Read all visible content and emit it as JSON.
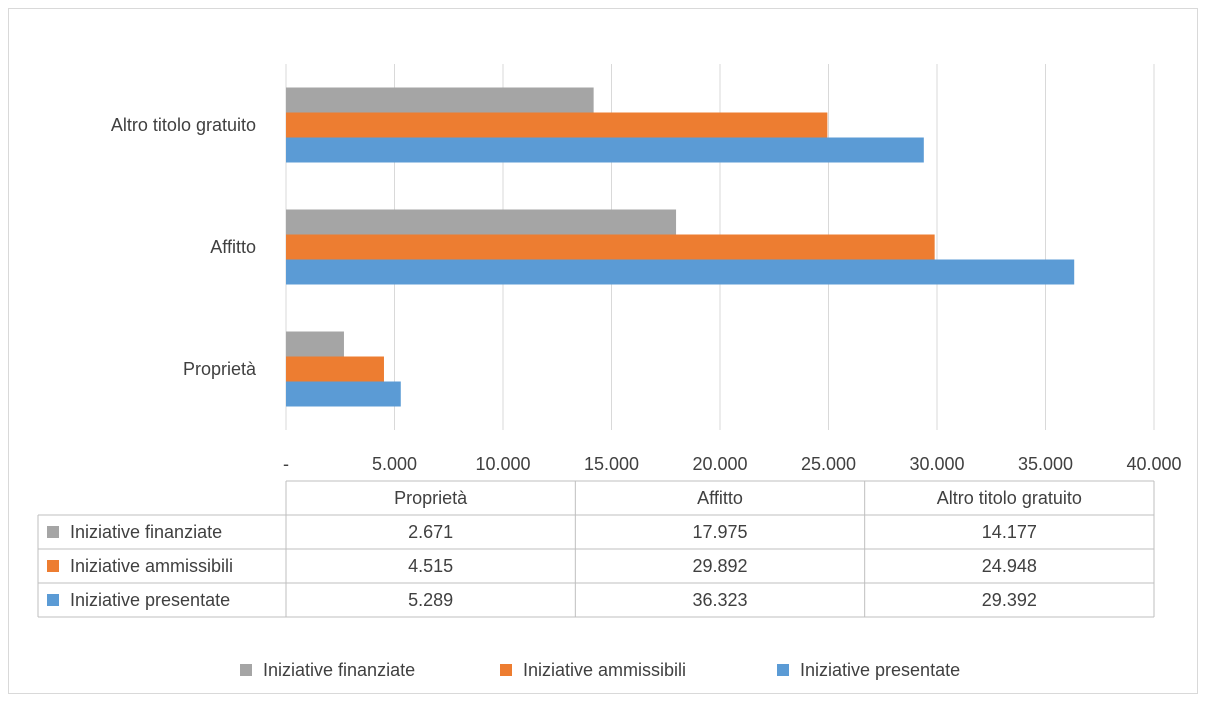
{
  "chart_data": {
    "type": "bar",
    "orientation": "horizontal",
    "categories": [
      "Proprietà",
      "Affitto",
      "Altro titolo gratuito"
    ],
    "series": [
      {
        "name": "Iniziative finanziate",
        "values": [
          2671,
          17975,
          14177
        ],
        "display": [
          "2.671",
          "17.975",
          "14.177"
        ],
        "color": "#a5a5a5"
      },
      {
        "name": "Iniziative ammissibili",
        "values": [
          4515,
          29892,
          24948
        ],
        "display": [
          "4.515",
          "29.892",
          "24.948"
        ],
        "color": "#ed7d31"
      },
      {
        "name": "Iniziative presentate",
        "values": [
          5289,
          36323,
          29392
        ],
        "display": [
          "5.289",
          "36.323",
          "29.392"
        ],
        "color": "#5b9bd5"
      }
    ],
    "xlim": [
      0,
      40000
    ],
    "xticks": [
      0,
      5000,
      10000,
      15000,
      20000,
      25000,
      30000,
      35000,
      40000
    ],
    "xtick_labels": [
      "-",
      "5.000",
      "10.000",
      "15.000",
      "20.000",
      "25.000",
      "30.000",
      "35.000",
      "40.000"
    ],
    "grid": true,
    "data_table": true,
    "legend_position": "bottom"
  }
}
